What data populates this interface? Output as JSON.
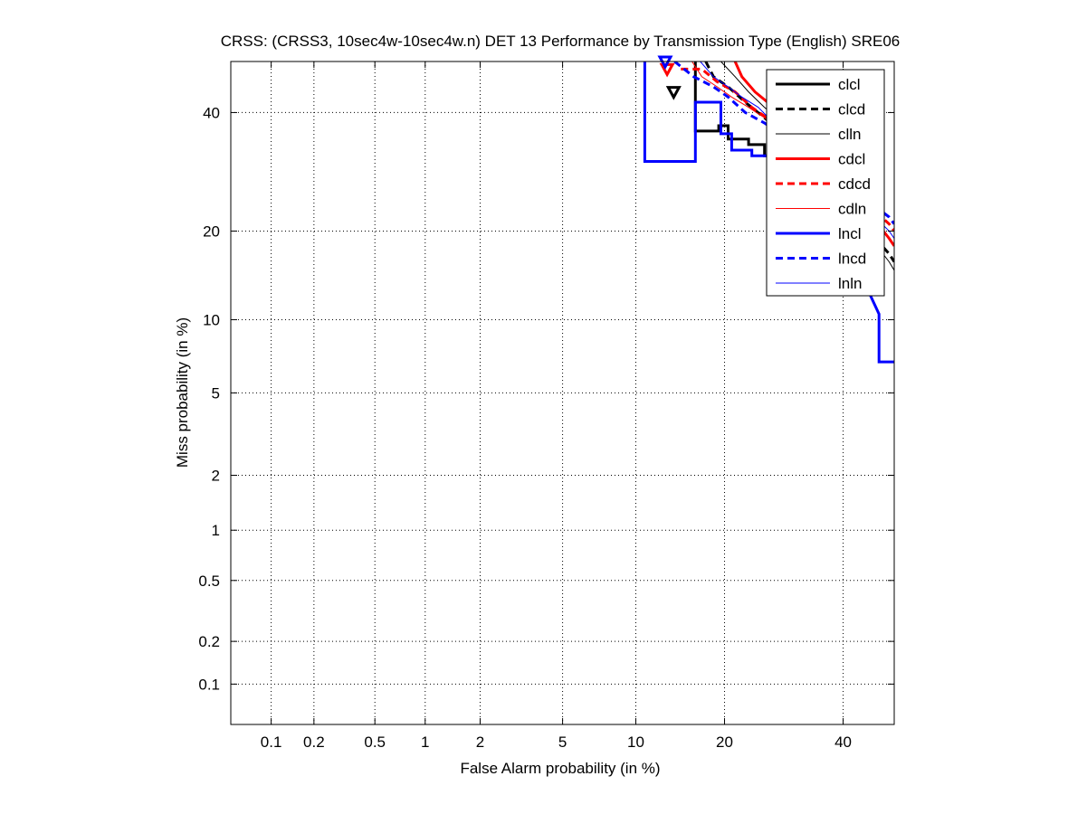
{
  "chart_data": {
    "type": "line",
    "title": "CRSS: (CRSS3, 10sec4w-10sec4w.n) DET 13 Performance by Transmission Type (English) SRE06",
    "xlabel": "False Alarm probability (in %)",
    "ylabel": "Miss probability (in %)",
    "x_scale": "probit",
    "y_scale": "probit",
    "xlim": [
      0.05,
      50
    ],
    "ylim": [
      0.05,
      50
    ],
    "x_ticks": [
      0.1,
      0.2,
      0.5,
      1,
      2,
      5,
      10,
      20,
      40
    ],
    "x_tick_labels": [
      "0.1",
      "0.2",
      "0.5",
      "1",
      "2",
      "5",
      "10",
      "20",
      "40"
    ],
    "y_ticks": [
      0.1,
      0.2,
      0.5,
      1,
      2,
      5,
      10,
      20,
      40
    ],
    "y_tick_labels": [
      "0.1",
      "0.2",
      "0.5",
      "1",
      "2",
      "5",
      "10",
      "20",
      "40"
    ],
    "grid": true,
    "legend_position": "top-right",
    "series": [
      {
        "name": "clcl",
        "color": "#000000",
        "style": "solid",
        "width": 3,
        "points": [
          [
            16.2,
            50
          ],
          [
            16.2,
            36.5
          ],
          [
            19.2,
            36.5
          ],
          [
            19.2,
            37.5
          ],
          [
            20.5,
            37.5
          ],
          [
            20.5,
            35
          ],
          [
            23.5,
            35
          ],
          [
            23.5,
            34
          ],
          [
            26,
            34
          ],
          [
            26,
            32
          ],
          [
            30,
            32
          ],
          [
            30,
            31
          ],
          [
            33,
            31
          ]
        ],
        "marker": null
      },
      {
        "name": "clcd",
        "color": "#000000",
        "style": "dashed",
        "width": 3,
        "points": [
          [
            17.5,
            50
          ],
          [
            18.5,
            47
          ],
          [
            20.5,
            45
          ],
          [
            23,
            42
          ],
          [
            26,
            39
          ],
          [
            28,
            37
          ],
          [
            49,
            17
          ],
          [
            50,
            16
          ]
        ],
        "marker": [
          13.7,
          44
        ]
      },
      {
        "name": "clln",
        "color": "#000000",
        "style": "solid",
        "width": 1,
        "points": [
          [
            19.5,
            50
          ],
          [
            21.5,
            47
          ],
          [
            23.5,
            44
          ],
          [
            26,
            41
          ],
          [
            29,
            38
          ],
          [
            31,
            35
          ],
          [
            49,
            16
          ],
          [
            50,
            15
          ]
        ],
        "marker": null
      },
      {
        "name": "cdcl",
        "color": "#ff0000",
        "style": "solid",
        "width": 3,
        "points": [
          [
            21.5,
            50
          ],
          [
            22.5,
            47
          ],
          [
            24.5,
            44
          ],
          [
            26.5,
            42
          ],
          [
            29,
            40
          ],
          [
            31,
            38
          ],
          [
            32.5,
            37
          ],
          [
            49,
            19
          ],
          [
            50,
            18
          ]
        ],
        "marker": null
      },
      {
        "name": "cdcd",
        "color": "#ff0000",
        "style": "dashed",
        "width": 3,
        "points": [
          [
            14.5,
            48.5
          ],
          [
            17,
            48.5
          ],
          [
            19,
            46
          ],
          [
            21.5,
            44
          ],
          [
            24,
            41
          ],
          [
            27,
            38.5
          ],
          [
            30,
            36
          ],
          [
            49,
            21
          ],
          [
            50,
            20
          ]
        ],
        "marker": [
          13,
          48.5
        ]
      },
      {
        "name": "cdln",
        "color": "#ff0000",
        "style": "solid",
        "width": 1,
        "points": [
          [
            15.8,
            50
          ],
          [
            17,
            47
          ],
          [
            19,
            45
          ],
          [
            21,
            43
          ],
          [
            23.5,
            41
          ],
          [
            26,
            39
          ],
          [
            28.5,
            37
          ],
          [
            49,
            19
          ],
          [
            50,
            18
          ]
        ],
        "marker": null
      },
      {
        "name": "lncl",
        "color": "#0000ff",
        "style": "solid",
        "width": 3,
        "points": [
          [
            10.8,
            50
          ],
          [
            10.8,
            31
          ],
          [
            16.2,
            31
          ],
          [
            16.2,
            42
          ],
          [
            19.5,
            42
          ],
          [
            19.5,
            36
          ],
          [
            21,
            36
          ],
          [
            21,
            33
          ],
          [
            24,
            33
          ],
          [
            24,
            32
          ],
          [
            33,
            32
          ],
          [
            47,
            10.5
          ],
          [
            47,
            6.8
          ],
          [
            50,
            6.8
          ]
        ],
        "marker": null
      },
      {
        "name": "lncd",
        "color": "#0000ff",
        "style": "dashed",
        "width": 3,
        "points": [
          [
            13.8,
            50
          ],
          [
            16,
            47
          ],
          [
            18.5,
            45
          ],
          [
            20.5,
            43
          ],
          [
            23,
            40
          ],
          [
            26,
            38
          ],
          [
            28.5,
            36
          ],
          [
            49,
            22
          ],
          [
            50,
            21
          ]
        ],
        "marker": [
          12.8,
          50
        ]
      },
      {
        "name": "lnln",
        "color": "#0000ff",
        "style": "solid",
        "width": 1,
        "points": [
          [
            16.8,
            50
          ],
          [
            18.5,
            47
          ],
          [
            20.5,
            45
          ],
          [
            22.5,
            43
          ],
          [
            25,
            41
          ],
          [
            27.5,
            38
          ],
          [
            30,
            36.5
          ],
          [
            49,
            20
          ],
          [
            50,
            19
          ]
        ],
        "marker": null
      }
    ]
  }
}
